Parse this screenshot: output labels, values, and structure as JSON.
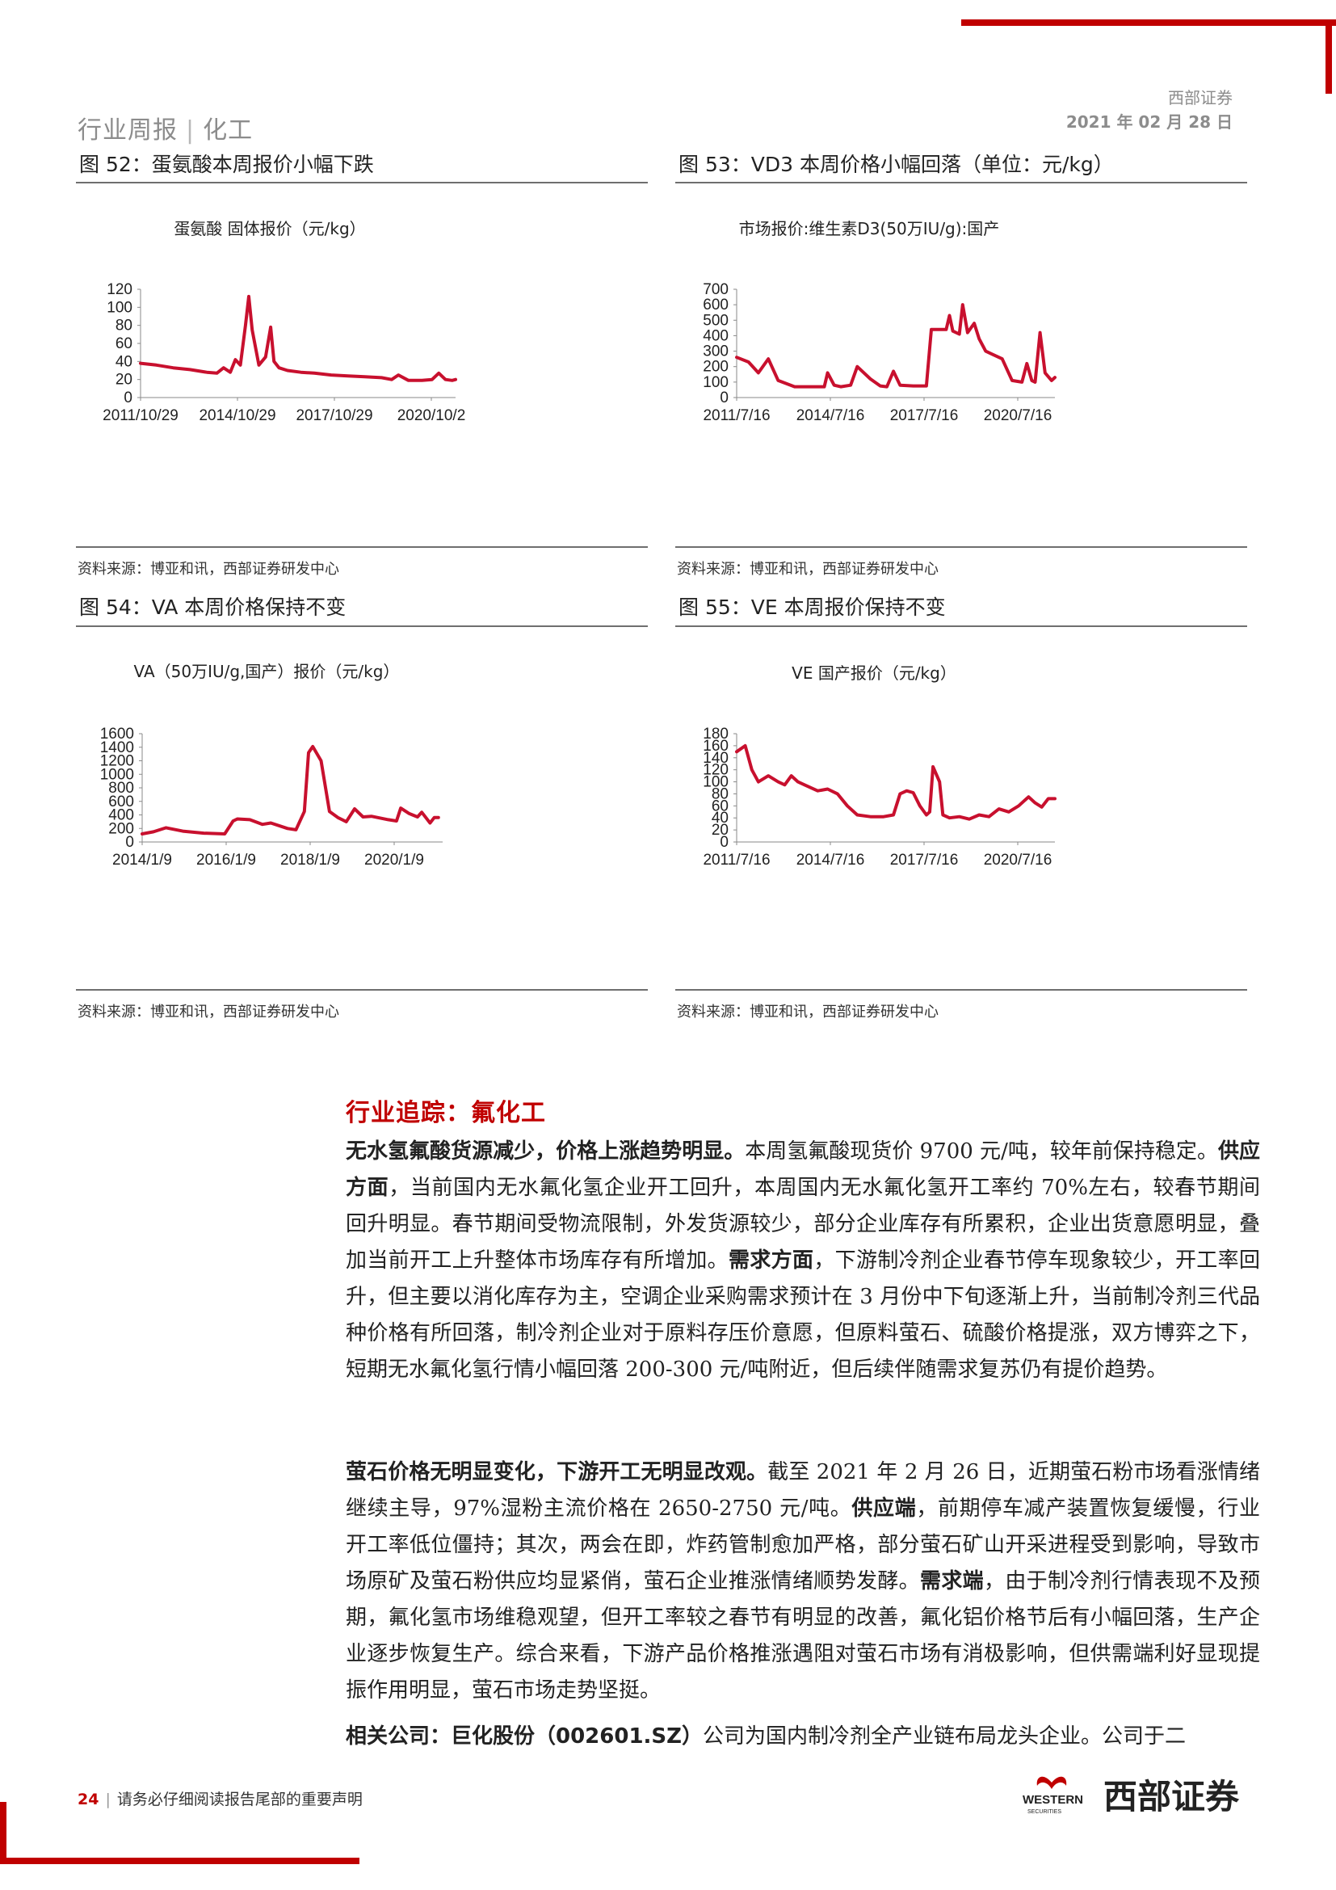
{
  "header": {
    "section_left": "行业周报",
    "section_sep": "|",
    "section_right": "化工",
    "company": "西部证券",
    "date": "2021 年 02 月 28 日"
  },
  "figures": [
    {
      "caption": "图 52：蛋氨酸本周报价小幅下跌",
      "source": "资料来源：博亚和讯，西部证券研发中心",
      "chart_data": {
        "type": "line",
        "title": "蛋氨酸  固体报价（元/kg）",
        "xlabel": "",
        "ylabel": "",
        "x_tick_labels": [
          "2011/10/29",
          "2014/10/29",
          "2017/10/29",
          "2020/10/2"
        ],
        "y_tick_labels": [
          "0",
          "20",
          "40",
          "60",
          "80",
          "100",
          "120"
        ],
        "ylim": [
          0,
          120
        ],
        "grid": false,
        "legend": "none",
        "color": "#c8102e",
        "series": [
          {
            "x": [
              2011.83,
              2012.3,
              2012.8,
              2013.3,
              2013.8,
              2014.1,
              2014.3,
              2014.5,
              2014.65,
              2014.8,
              2014.95,
              2015.05,
              2015.15,
              2015.35,
              2015.55,
              2015.7,
              2015.8,
              2015.95,
              2016.2,
              2016.6,
              2017.0,
              2017.5,
              2018.0,
              2018.5,
              2019.0,
              2019.3,
              2019.5,
              2019.8,
              2020.2,
              2020.5,
              2020.7,
              2020.9,
              2021.1,
              2021.2
            ],
            "y": [
              38,
              36,
              33,
              31,
              28,
              27,
              33,
              28,
              42,
              36,
              80,
              112,
              75,
              36,
              45,
              78,
              40,
              33,
              30,
              28,
              27,
              25,
              24,
              23,
              22,
              20,
              25,
              19,
              19,
              20,
              27,
              20,
              19,
              20
            ]
          }
        ]
      }
    },
    {
      "caption": "图 53：VD3 本周价格小幅回落（单位：元/kg）",
      "source": "资料来源：博亚和讯，西部证券研发中心",
      "chart_data": {
        "type": "line",
        "title": "市场报价:维生素D3(50万IU/g):国产",
        "xlabel": "",
        "ylabel": "",
        "x_tick_labels": [
          "2011/7/16",
          "2014/7/16",
          "2017/7/16",
          "2020/7/16"
        ],
        "y_tick_labels": [
          "0",
          "100",
          "200",
          "300",
          "400",
          "500",
          "600",
          "700"
        ],
        "ylim": [
          0,
          700
        ],
        "grid": false,
        "legend": "none",
        "color": "#c8102e",
        "series": [
          {
            "x": [
              2011.54,
              2011.9,
              2012.2,
              2012.5,
              2012.8,
              2013.3,
              2013.8,
              2014.2,
              2014.3,
              2014.5,
              2014.7,
              2015.0,
              2015.2,
              2015.6,
              2015.9,
              2016.1,
              2016.3,
              2016.5,
              2016.9,
              2017.3,
              2017.45,
              2017.55,
              2017.9,
              2018.0,
              2018.1,
              2018.3,
              2018.4,
              2018.55,
              2018.75,
              2018.9,
              2019.1,
              2019.3,
              2019.6,
              2019.9,
              2020.2,
              2020.35,
              2020.5,
              2020.6,
              2020.75,
              2020.9,
              2021.1,
              2021.2
            ],
            "y": [
              260,
              230,
              160,
              250,
              110,
              70,
              70,
              70,
              160,
              80,
              70,
              80,
              200,
              120,
              75,
              70,
              170,
              80,
              75,
              75,
              440,
              440,
              440,
              530,
              430,
              410,
              600,
              420,
              480,
              380,
              300,
              280,
              250,
              110,
              100,
              220,
              110,
              100,
              420,
              160,
              110,
              130
            ]
          }
        ]
      }
    },
    {
      "caption": "图 54：VA 本周价格保持不变",
      "source": "资料来源：博亚和讯，西部证券研发中心",
      "chart_data": {
        "type": "line",
        "title": "VA（50万IU/g,国产）报价（元/kg）",
        "xlabel": "",
        "ylabel": "",
        "x_tick_labels": [
          "2014/1/9",
          "2016/1/9",
          "2018/1/9",
          "2020/1/9"
        ],
        "y_tick_labels": [
          "0",
          "200",
          "400",
          "600",
          "800",
          "1000",
          "1200",
          "1400",
          "1600"
        ],
        "ylim": [
          0,
          1600
        ],
        "grid": false,
        "legend": "none",
        "color": "#c8102e",
        "series": [
          {
            "x": [
              2014.03,
              2014.3,
              2014.6,
              2015.0,
              2015.5,
              2016.0,
              2016.2,
              2016.3,
              2016.6,
              2016.9,
              2017.1,
              2017.5,
              2017.7,
              2017.9,
              2018.0,
              2018.1,
              2018.3,
              2018.5,
              2018.7,
              2018.9,
              2019.1,
              2019.3,
              2019.5,
              2019.9,
              2020.1,
              2020.2,
              2020.4,
              2020.6,
              2020.7,
              2020.9,
              2021.0,
              2021.1
            ],
            "y": [
              120,
              150,
              210,
              160,
              130,
              120,
              310,
              340,
              330,
              260,
              280,
              200,
              180,
              450,
              1320,
              1410,
              1200,
              450,
              360,
              300,
              490,
              370,
              380,
              330,
              310,
              500,
              420,
              370,
              440,
              280,
              360,
              360
            ]
          }
        ]
      }
    },
    {
      "caption": "图 55：VE 本周报价保持不变",
      "source": "资料来源：博亚和讯，西部证券研发中心",
      "chart_data": {
        "type": "line",
        "title": "VE  国产报价（元/kg）",
        "xlabel": "",
        "ylabel": "",
        "x_tick_labels": [
          "2011/7/16",
          "2014/7/16",
          "2017/7/16",
          "2020/7/16"
        ],
        "y_tick_labels": [
          "0",
          "20",
          "40",
          "60",
          "80",
          "100",
          "120",
          "140",
          "160",
          "180"
        ],
        "ylim": [
          0,
          180
        ],
        "grid": false,
        "legend": "none",
        "color": "#c8102e",
        "series": [
          {
            "x": [
              2011.54,
              2011.8,
              2012.0,
              2012.2,
              2012.5,
              2012.8,
              2013.0,
              2013.2,
              2013.4,
              2013.6,
              2014.0,
              2014.3,
              2014.6,
              2014.9,
              2015.2,
              2015.6,
              2016.0,
              2016.3,
              2016.5,
              2016.7,
              2016.9,
              2017.1,
              2017.3,
              2017.4,
              2017.5,
              2017.7,
              2017.8,
              2018.0,
              2018.3,
              2018.6,
              2018.9,
              2019.2,
              2019.5,
              2019.8,
              2020.1,
              2020.4,
              2020.6,
              2020.8,
              2021.0,
              2021.2
            ],
            "y": [
              150,
              160,
              120,
              100,
              110,
              100,
              95,
              110,
              100,
              95,
              85,
              88,
              80,
              60,
              45,
              42,
              42,
              45,
              80,
              85,
              82,
              60,
              45,
              50,
              125,
              100,
              45,
              40,
              42,
              38,
              45,
              42,
              55,
              50,
              60,
              75,
              65,
              58,
              72,
              72
            ]
          }
        ]
      }
    }
  ],
  "section": {
    "title": "行业追踪：氟化工"
  },
  "paragraphs": [
    {
      "spans": [
        {
          "b": true,
          "t": "无水氢氟酸货源减少，价格上涨趋势明显。"
        },
        {
          "b": false,
          "t": "本周氢氟酸现货价 9700 元/吨，较年前保持稳定。"
        },
        {
          "b": true,
          "t": "供应方面"
        },
        {
          "b": false,
          "t": "，当前国内无水氟化氢企业开工回升，本周国内无水氟化氢开工率约 70%左右，较春节期间回升明显。春节期间受物流限制，外发货源较少，部分企业库存有所累积，企业出货意愿明显，叠加当前开工上升整体市场库存有所增加。"
        },
        {
          "b": true,
          "t": "需求方面"
        },
        {
          "b": false,
          "t": "，下游制冷剂企业春节停车现象较少，开工率回升，但主要以消化库存为主，空调企业采购需求预计在 3 月份中下旬逐渐上升，当前制冷剂三代品种价格有所回落，制冷剂企业对于原料存压价意愿，但原料萤石、硫酸价格提涨，双方博弈之下，短期无水氟化氢行情小幅回落 200-300 元/吨附近，但后续伴随需求复苏仍有提价趋势。"
        }
      ]
    },
    {
      "spans": [
        {
          "b": true,
          "t": "萤石价格无明显变化，下游开工无明显改观。"
        },
        {
          "b": false,
          "t": "截至 2021 年 2 月 26 日，近期萤石粉市场看涨情绪继续主导，97%湿粉主流价格在 2650-2750 元/吨。"
        },
        {
          "b": true,
          "t": "供应端"
        },
        {
          "b": false,
          "t": "，前期停车减产装置恢复缓慢，行业开工率低位僵持；其次，两会在即，炸药管制愈加严格，部分萤石矿山开采进程受到影响，导致市场原矿及萤石粉供应均显紧俏，萤石企业推涨情绪顺势发酵。"
        },
        {
          "b": true,
          "t": "需求端"
        },
        {
          "b": false,
          "t": "，由于制冷剂行情表现不及预期，氟化氢市场维稳观望，但开工率较之春节有明显的改善，氟化铝价格节后有小幅回落，生产企业逐步恢复生产。综合来看，下游产品价格推涨遇阻对萤石市场有消极影响，但供需端利好显现提振作用明显，萤石市场走势坚挺。"
        }
      ]
    },
    {
      "spans": [
        {
          "b": true,
          "t": "相关公司：巨化股份（002601.SZ）"
        },
        {
          "b": false,
          "t": "公司为国内制冷剂全产业链布局龙头企业。公司于二"
        }
      ]
    }
  ],
  "footer": {
    "page": "24",
    "bar": "|",
    "notice": "请务必仔细阅读报告尾部的重要声明",
    "logo_en": "WESTERN",
    "logo_en_sub": "SECURITIES",
    "logo_cn": "西部证券"
  }
}
